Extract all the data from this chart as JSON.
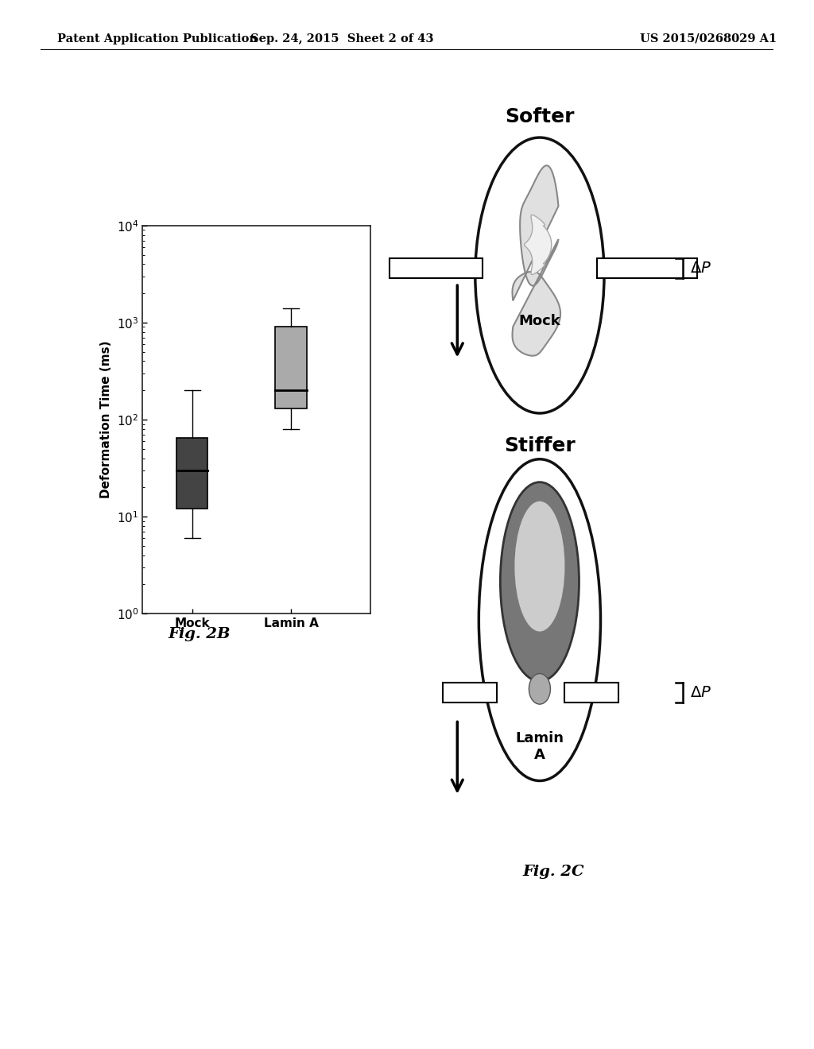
{
  "header_left": "Patent Application Publication",
  "header_center": "Sep. 24, 2015  Sheet 2 of 43",
  "header_right": "US 2015/0268029 A1",
  "fig2b_label": "Fig. 2B",
  "fig2c_label": "Fig. 2C",
  "ylabel": "Deformation Time (ms)",
  "categories": [
    "Mock",
    "Lamin A"
  ],
  "mock_box": {
    "whisker_low": 6,
    "q1": 12,
    "median": 30,
    "q3": 65,
    "whisker_high": 200,
    "color": "#444444"
  },
  "lamina_box": {
    "whisker_low": 80,
    "q1": 130,
    "median": 200,
    "q3": 900,
    "whisker_high": 1400,
    "color": "#aaaaaa"
  },
  "ylim_log_min": 1,
  "ylim_log_max": 10000,
  "background_color": "#ffffff",
  "plot_bg": "#ffffff",
  "fig2c_bg": "#e8e8e8"
}
